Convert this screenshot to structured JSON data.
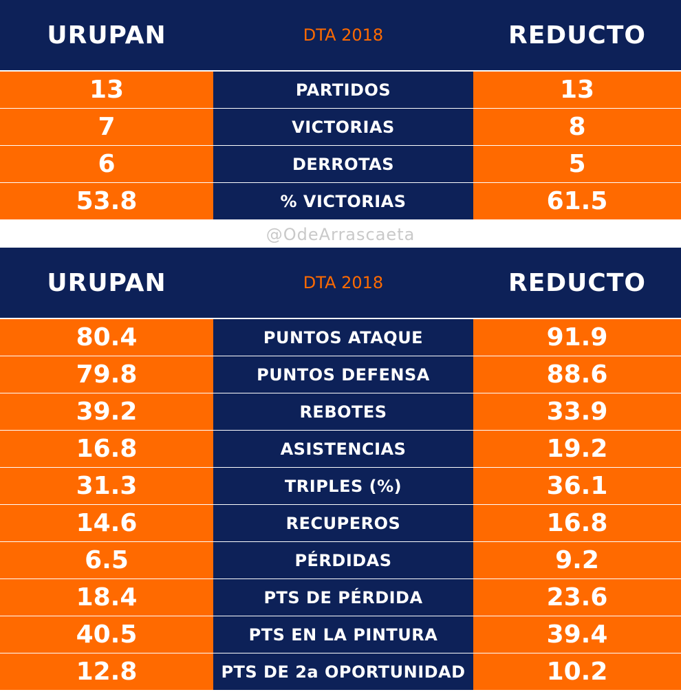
{
  "table1": {
    "header": {
      "left_team": "URUPAN",
      "center_label": "DTA 2018",
      "right_team": "REDUCTO"
    },
    "rows": [
      {
        "left": "13",
        "label": "PARTIDOS",
        "right": "13"
      },
      {
        "left": "7",
        "label": "VICTORIAS",
        "right": "8"
      },
      {
        "left": "6",
        "label": "DERROTAS",
        "right": "5"
      },
      {
        "left": "53.8",
        "label": "% VICTORIAS",
        "right": "61.5"
      }
    ]
  },
  "watermark": "@OdeArrascaeta",
  "table2": {
    "header": {
      "left_team": "URUPAN",
      "center_label": "DTA 2018",
      "right_team": "REDUCTO"
    },
    "rows": [
      {
        "left": "80.4",
        "label": "PUNTOS ATAQUE",
        "right": "91.9"
      },
      {
        "left": "79.8",
        "label": "PUNTOS DEFENSA",
        "right": "88.6"
      },
      {
        "left": "39.2",
        "label": "REBOTES",
        "right": "33.9"
      },
      {
        "left": "16.8",
        "label": "ASISTENCIAS",
        "right": "19.2"
      },
      {
        "left": "31.3",
        "label": "TRIPLES (%)",
        "right": "36.1"
      },
      {
        "left": "14.6",
        "label": "RECUPEROS",
        "right": "16.8"
      },
      {
        "left": "6.5",
        "label": "PÉRDIDAS",
        "right": "9.2"
      },
      {
        "left": "18.4",
        "label": "PTS DE PÉRDIDA",
        "right": "23.6"
      },
      {
        "left": "40.5",
        "label": "PTS EN LA PINTURA",
        "right": "39.4"
      },
      {
        "left": "12.8",
        "label": "PTS DE 2a OPORTUNIDAD",
        "right": "10.2"
      }
    ]
  },
  "colors": {
    "navy": "#0d2158",
    "orange": "#ff6a00",
    "watermark": "#c9c9c9"
  }
}
